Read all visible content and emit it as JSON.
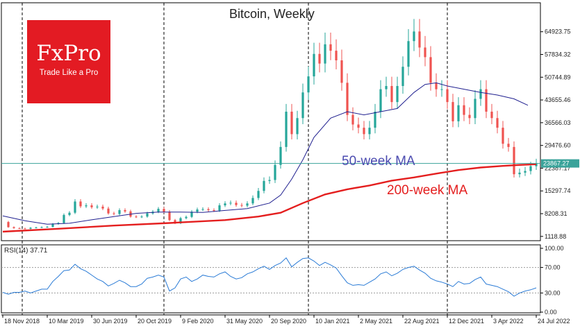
{
  "chart_data": {
    "type": "line",
    "title": "Bitcoin, Weekly",
    "panels": {
      "price": {
        "ylim": [
          0,
          72000
        ],
        "y_ticks": [
          {
            "value": 1118.88,
            "label": "1118.88"
          },
          {
            "value": 8208.31,
            "label": "8208.31"
          },
          {
            "value": 15297.74,
            "label": "15297.74"
          },
          {
            "value": 22387.17,
            "label": "22387.17"
          },
          {
            "value": 29476.6,
            "label": "29476.60"
          },
          {
            "value": 36566.03,
            "label": "36566.03"
          },
          {
            "value": 43655.46,
            "label": "43655.46"
          },
          {
            "value": 50744.89,
            "label": "50744.89"
          },
          {
            "value": 57834.32,
            "label": "57834.32"
          },
          {
            "value": 64923.75,
            "label": "64923.75"
          }
        ],
        "current_price": {
          "value": 23867.27,
          "label": "23867.27"
        }
      },
      "rsi": {
        "label": "RSI(14) 37.71",
        "ylim": [
          0,
          100
        ],
        "y_ticks": [
          {
            "value": 100,
            "label": "100.00"
          },
          {
            "value": 70,
            "label": "70.00"
          },
          {
            "value": 30,
            "label": "30.00"
          },
          {
            "value": 0,
            "label": "0.00"
          }
        ]
      }
    },
    "x_ticks": [
      {
        "w": 0,
        "label": "18 Nov 2018"
      },
      {
        "w": 16,
        "label": "10 Mar 2019"
      },
      {
        "w": 32,
        "label": "30 Jun 2019"
      },
      {
        "w": 48,
        "label": "20 Oct 2019"
      },
      {
        "w": 64,
        "label": "9 Feb 2020"
      },
      {
        "w": 80,
        "label": "31 May 2020"
      },
      {
        "w": 96,
        "label": "20 Sep 2020"
      },
      {
        "w": 112,
        "label": "10 Jan 2021"
      },
      {
        "w": 128,
        "label": "2 May 2021"
      },
      {
        "w": 144,
        "label": "22 Aug 2021"
      },
      {
        "w": 160,
        "label": "12 Dec 2021"
      },
      {
        "w": 176,
        "label": "3 Apr 2022"
      },
      {
        "w": 192,
        "label": "24 Jul 2022"
      }
    ],
    "vertical_markers": [
      7,
      58,
      110,
      160
    ],
    "weeks_total": 192,
    "price_close": [
      [
        0,
        5600
      ],
      [
        2,
        4000
      ],
      [
        4,
        3700
      ],
      [
        6,
        3600
      ],
      [
        8,
        3500
      ],
      [
        10,
        3800
      ],
      [
        12,
        3900
      ],
      [
        14,
        4000
      ],
      [
        16,
        4100
      ],
      [
        18,
        5000
      ],
      [
        20,
        5300
      ],
      [
        22,
        7800
      ],
      [
        24,
        8500
      ],
      [
        26,
        12000
      ],
      [
        28,
        10500
      ],
      [
        30,
        10800
      ],
      [
        32,
        10200
      ],
      [
        34,
        10400
      ],
      [
        36,
        9800
      ],
      [
        38,
        8300
      ],
      [
        40,
        8100
      ],
      [
        42,
        9300
      ],
      [
        44,
        8900
      ],
      [
        46,
        7300
      ],
      [
        48,
        7200
      ],
      [
        50,
        7300
      ],
      [
        52,
        8300
      ],
      [
        54,
        8800
      ],
      [
        56,
        9700
      ],
      [
        58,
        8800
      ],
      [
        60,
        6200
      ],
      [
        62,
        5200
      ],
      [
        64,
        6800
      ],
      [
        66,
        7200
      ],
      [
        68,
        8800
      ],
      [
        70,
        9500
      ],
      [
        72,
        9600
      ],
      [
        74,
        9300
      ],
      [
        76,
        9200
      ],
      [
        78,
        10800
      ],
      [
        80,
        11400
      ],
      [
        82,
        11600
      ],
      [
        84,
        10900
      ],
      [
        86,
        10700
      ],
      [
        88,
        11400
      ],
      [
        90,
        13100
      ],
      [
        92,
        15300
      ],
      [
        94,
        18400
      ],
      [
        96,
        18700
      ],
      [
        98,
        23400
      ],
      [
        100,
        29000
      ],
      [
        102,
        40000
      ],
      [
        104,
        33000
      ],
      [
        106,
        38000
      ],
      [
        108,
        46000
      ],
      [
        110,
        51000
      ],
      [
        112,
        58000
      ],
      [
        114,
        55000
      ],
      [
        116,
        61000
      ],
      [
        118,
        59000
      ],
      [
        120,
        56000
      ],
      [
        122,
        49000
      ],
      [
        124,
        39000
      ],
      [
        126,
        36000
      ],
      [
        128,
        35000
      ],
      [
        130,
        33000
      ],
      [
        132,
        35000
      ],
      [
        134,
        40000
      ],
      [
        136,
        47000
      ],
      [
        138,
        48000
      ],
      [
        140,
        43000
      ],
      [
        142,
        48000
      ],
      [
        144,
        54000
      ],
      [
        146,
        62000
      ],
      [
        148,
        65000
      ],
      [
        150,
        60000
      ],
      [
        152,
        57000
      ],
      [
        154,
        49000
      ],
      [
        156,
        47000
      ],
      [
        158,
        47000
      ],
      [
        160,
        43000
      ],
      [
        162,
        37000
      ],
      [
        164,
        42000
      ],
      [
        166,
        39000
      ],
      [
        168,
        38000
      ],
      [
        170,
        44000
      ],
      [
        172,
        47000
      ],
      [
        174,
        40000
      ],
      [
        176,
        38000
      ],
      [
        178,
        35000
      ],
      [
        180,
        30000
      ],
      [
        182,
        29000
      ],
      [
        184,
        20500
      ],
      [
        186,
        21000
      ],
      [
        188,
        21500
      ],
      [
        190,
        23000
      ],
      [
        192,
        23900
      ]
    ],
    "ma50": [
      [
        0,
        7500
      ],
      [
        8,
        6000
      ],
      [
        16,
        4900
      ],
      [
        24,
        5200
      ],
      [
        32,
        6300
      ],
      [
        40,
        7300
      ],
      [
        48,
        8300
      ],
      [
        56,
        8700
      ],
      [
        64,
        8700
      ],
      [
        72,
        8600
      ],
      [
        80,
        9200
      ],
      [
        88,
        9800
      ],
      [
        96,
        11500
      ],
      [
        100,
        14000
      ],
      [
        104,
        19000
      ],
      [
        108,
        25000
      ],
      [
        112,
        32000
      ],
      [
        118,
        38000
      ],
      [
        124,
        40000
      ],
      [
        130,
        39000
      ],
      [
        136,
        40000
      ],
      [
        142,
        41000
      ],
      [
        148,
        46000
      ],
      [
        152,
        48500
      ],
      [
        156,
        49000
      ],
      [
        160,
        48000
      ],
      [
        166,
        47000
      ],
      [
        172,
        46000
      ],
      [
        178,
        45200
      ],
      [
        184,
        44000
      ],
      [
        189,
        42000
      ]
    ],
    "ma200": [
      [
        0,
        2600
      ],
      [
        20,
        3500
      ],
      [
        40,
        4500
      ],
      [
        60,
        5300
      ],
      [
        80,
        6200
      ],
      [
        92,
        7300
      ],
      [
        100,
        8500
      ],
      [
        108,
        11500
      ],
      [
        116,
        14200
      ],
      [
        124,
        15800
      ],
      [
        132,
        17000
      ],
      [
        140,
        18500
      ],
      [
        148,
        19500
      ],
      [
        156,
        20700
      ],
      [
        164,
        21800
      ],
      [
        172,
        22600
      ],
      [
        180,
        23100
      ],
      [
        186,
        23400
      ],
      [
        192,
        23600
      ]
    ],
    "rsi_values": [
      [
        0,
        31
      ],
      [
        2,
        28
      ],
      [
        4,
        31
      ],
      [
        6,
        31
      ],
      [
        8,
        33
      ],
      [
        10,
        30
      ],
      [
        12,
        33
      ],
      [
        14,
        36
      ],
      [
        16,
        36
      ],
      [
        18,
        48
      ],
      [
        20,
        56
      ],
      [
        22,
        65
      ],
      [
        24,
        66
      ],
      [
        26,
        75
      ],
      [
        28,
        68
      ],
      [
        30,
        64
      ],
      [
        32,
        58
      ],
      [
        34,
        52
      ],
      [
        36,
        48
      ],
      [
        38,
        41
      ],
      [
        40,
        45
      ],
      [
        42,
        50
      ],
      [
        44,
        46
      ],
      [
        46,
        40
      ],
      [
        48,
        40
      ],
      [
        50,
        44
      ],
      [
        52,
        53
      ],
      [
        54,
        55
      ],
      [
        56,
        58
      ],
      [
        58,
        55
      ],
      [
        60,
        33
      ],
      [
        62,
        38
      ],
      [
        64,
        52
      ],
      [
        66,
        55
      ],
      [
        68,
        48
      ],
      [
        70,
        52
      ],
      [
        72,
        58
      ],
      [
        74,
        56
      ],
      [
        76,
        55
      ],
      [
        78,
        60
      ],
      [
        80,
        63
      ],
      [
        82,
        56
      ],
      [
        84,
        52
      ],
      [
        86,
        54
      ],
      [
        88,
        60
      ],
      [
        90,
        63
      ],
      [
        92,
        68
      ],
      [
        94,
        72
      ],
      [
        96,
        67
      ],
      [
        98,
        73
      ],
      [
        100,
        77
      ],
      [
        102,
        85
      ],
      [
        104,
        71
      ],
      [
        106,
        78
      ],
      [
        108,
        84
      ],
      [
        110,
        85
      ],
      [
        112,
        80
      ],
      [
        114,
        73
      ],
      [
        116,
        78
      ],
      [
        118,
        74
      ],
      [
        120,
        69
      ],
      [
        122,
        57
      ],
      [
        124,
        46
      ],
      [
        126,
        42
      ],
      [
        128,
        43
      ],
      [
        130,
        42
      ],
      [
        132,
        47
      ],
      [
        134,
        52
      ],
      [
        136,
        60
      ],
      [
        138,
        63
      ],
      [
        140,
        57
      ],
      [
        142,
        61
      ],
      [
        144,
        67
      ],
      [
        146,
        70
      ],
      [
        148,
        72
      ],
      [
        150,
        66
      ],
      [
        152,
        61
      ],
      [
        154,
        53
      ],
      [
        156,
        49
      ],
      [
        158,
        47
      ],
      [
        160,
        44
      ],
      [
        162,
        40
      ],
      [
        164,
        48
      ],
      [
        166,
        44
      ],
      [
        168,
        45
      ],
      [
        170,
        51
      ],
      [
        172,
        55
      ],
      [
        174,
        44
      ],
      [
        176,
        42
      ],
      [
        178,
        40
      ],
      [
        180,
        36
      ],
      [
        182,
        32
      ],
      [
        184,
        25
      ],
      [
        186,
        30
      ],
      [
        188,
        33
      ],
      [
        190,
        35
      ],
      [
        192,
        38
      ]
    ],
    "candle_colors": {
      "up": "#26a69a",
      "down": "#ef5350"
    }
  },
  "annotations": {
    "ma50_label": "50-week MA",
    "ma200_label": "200-week MA"
  },
  "logo": {
    "word": "FxPro",
    "tagline": "Trade Like a Pro"
  },
  "colors": {
    "ma50": "#1f1f8f",
    "ma200": "#e41e1e",
    "rsi": "#2a7bd6",
    "price_line": "#3aa39a",
    "logo_bg": "#e31b23"
  }
}
